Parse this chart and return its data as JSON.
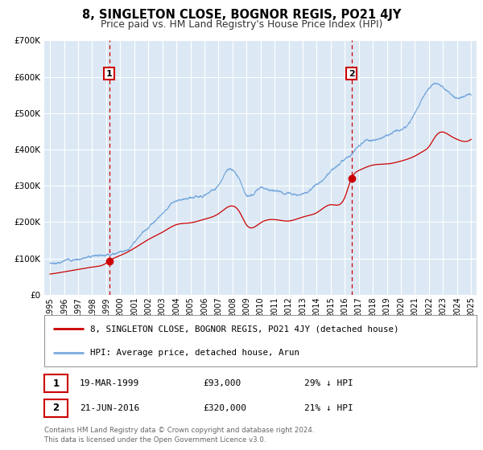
{
  "title": "8, SINGLETON CLOSE, BOGNOR REGIS, PO21 4JY",
  "subtitle": "Price paid vs. HM Land Registry's House Price Index (HPI)",
  "ylim": [
    0,
    700000
  ],
  "yticks": [
    0,
    100000,
    200000,
    300000,
    400000,
    500000,
    600000,
    700000
  ],
  "ytick_labels": [
    "£0",
    "£100K",
    "£200K",
    "£300K",
    "£400K",
    "£500K",
    "£600K",
    "£700K"
  ],
  "xlim_start": 1994.6,
  "xlim_end": 2025.4,
  "background_color": "#dce9f5",
  "fig_bg_color": "#ffffff",
  "grid_color": "#ffffff",
  "red_line_color": "#cc0000",
  "blue_line_color": "#7aaadd",
  "marker1_date": 1999.21,
  "marker1_price": 93000,
  "marker2_date": 2016.47,
  "marker2_price": 320000,
  "vline_color": "#cc0000",
  "legend_label1": "8, SINGLETON CLOSE, BOGNOR REGIS, PO21 4JY (detached house)",
  "legend_label2": "HPI: Average price, detached house, Arun",
  "table_row1": [
    "1",
    "19-MAR-1999",
    "£93,000",
    "29% ↓ HPI"
  ],
  "table_row2": [
    "2",
    "21-JUN-2016",
    "£320,000",
    "21% ↓ HPI"
  ],
  "footer_text": "Contains HM Land Registry data © Crown copyright and database right 2024.\nThis data is licensed under the Open Government Licence v3.0.",
  "blue_anchors_x": [
    1995.0,
    1996.0,
    1997.0,
    1998.0,
    1999.0,
    2000.0,
    2001.0,
    2002.0,
    2003.0,
    2004.0,
    2005.0,
    2006.0,
    2007.0,
    2007.75,
    2008.5,
    2009.0,
    2010.0,
    2011.0,
    2012.0,
    2013.0,
    2014.0,
    2015.0,
    2016.0,
    2016.47,
    2017.0,
    2018.0,
    2019.0,
    2020.0,
    2020.5,
    2021.0,
    2021.5,
    2022.0,
    2022.5,
    2023.0,
    2023.5,
    2024.0,
    2024.5,
    2025.0
  ],
  "blue_anchors_y": [
    87000,
    93000,
    100000,
    108000,
    118000,
    133000,
    158000,
    200000,
    242000,
    278000,
    272000,
    283000,
    310000,
    348000,
    320000,
    283000,
    293000,
    288000,
    283000,
    292000,
    320000,
    360000,
    398000,
    406000,
    432000,
    442000,
    448000,
    455000,
    462000,
    488000,
    526000,
    558000,
    575000,
    562000,
    545000,
    535000,
    545000,
    550000
  ],
  "red_anchors_x": [
    1995.0,
    1996.0,
    1997.0,
    1998.0,
    1999.0,
    1999.21,
    2000.0,
    2001.0,
    2002.0,
    2003.0,
    2004.0,
    2005.0,
    2006.0,
    2007.0,
    2007.75,
    2008.5,
    2009.0,
    2010.0,
    2011.0,
    2012.0,
    2013.0,
    2014.0,
    2015.0,
    2016.0,
    2016.47,
    2017.0,
    2018.0,
    2019.0,
    2020.0,
    2021.0,
    2021.5,
    2022.0,
    2022.5,
    2023.0,
    2023.5,
    2024.0,
    2024.5,
    2025.0
  ],
  "red_anchors_y": [
    57000,
    63000,
    70000,
    76000,
    87000,
    93000,
    108000,
    128000,
    152000,
    172000,
    193000,
    198000,
    208000,
    223000,
    243000,
    228000,
    192000,
    198000,
    207000,
    203000,
    214000,
    226000,
    248000,
    268000,
    320000,
    342000,
    357000,
    360000,
    368000,
    382000,
    393000,
    408000,
    438000,
    448000,
    438000,
    428000,
    422000,
    428000
  ]
}
